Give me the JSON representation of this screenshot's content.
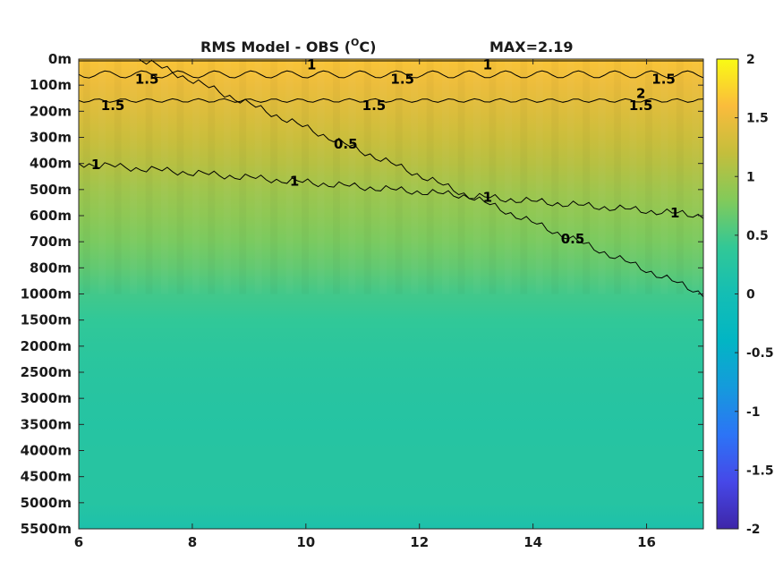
{
  "chart_data": {
    "type": "heatmap",
    "title": "RMS Model - OBS (°C)",
    "title_left": "RMS Model - OBS (",
    "title_degree": "O",
    "title_unit": "C)",
    "annotation": "MAX=2.19",
    "xlim": [
      6,
      17
    ],
    "x_ticks": [
      6,
      8,
      10,
      12,
      14,
      16
    ],
    "x_tick_labels": [
      "6",
      "8",
      "10",
      "12",
      "14",
      "16"
    ],
    "y_tick_labels": [
      "0m",
      "100m",
      "200m",
      "300m",
      "400m",
      "500m",
      "600m",
      "700m",
      "800m",
      "1000m",
      "1500m",
      "2000m",
      "2500m",
      "3000m",
      "3500m",
      "4000m",
      "4500m",
      "5000m",
      "5500m"
    ],
    "colorbar": {
      "range": [
        -2,
        2
      ],
      "ticks": [
        2,
        1.5,
        1,
        0.5,
        0,
        -0.5,
        -1,
        -1.5,
        -2
      ],
      "tick_labels": [
        "2",
        "1.5",
        "1",
        "0.5",
        "0",
        "-0.5",
        "-1",
        "-1.5",
        "-2"
      ],
      "colormap": "parula"
    },
    "depth_profile": [
      {
        "depth": "0m",
        "value": 1.65
      },
      {
        "depth": "100m",
        "value": 1.5
      },
      {
        "depth": "200m",
        "value": 1.38
      },
      {
        "depth": "300m",
        "value": 1.25
      },
      {
        "depth": "400m",
        "value": 1.12
      },
      {
        "depth": "500m",
        "value": 0.98
      },
      {
        "depth": "600m",
        "value": 0.87
      },
      {
        "depth": "700m",
        "value": 0.76
      },
      {
        "depth": "800m",
        "value": 0.64
      },
      {
        "depth": "1000m",
        "value": 0.48
      },
      {
        "depth": "1500m",
        "value": 0.38
      },
      {
        "depth": "2000m",
        "value": 0.32
      },
      {
        "depth": "2500m",
        "value": 0.28
      },
      {
        "depth": "3000m",
        "value": 0.25
      },
      {
        "depth": "3500m",
        "value": 0.23
      },
      {
        "depth": "4000m",
        "value": 0.25
      },
      {
        "depth": "4500m",
        "value": 0.25
      },
      {
        "depth": "5000m",
        "value": 0.24
      },
      {
        "depth": "5500m",
        "value": 0.12
      }
    ],
    "contours": [
      {
        "level": 1.5,
        "depth_start": "100m",
        "depth_end": "100m",
        "labels": [
          {
            "x": 7.2,
            "text": "1.5"
          },
          {
            "x": 11.7,
            "text": "1.5"
          },
          {
            "x": 16.3,
            "text": "1.5"
          }
        ]
      },
      {
        "level": 1.5,
        "depth_start": "200m",
        "depth_end": "200m",
        "labels": [
          {
            "x": 6.6,
            "text": "1.5"
          },
          {
            "x": 11.2,
            "text": "1.5"
          },
          {
            "x": 15.9,
            "text": "1.5"
          }
        ]
      },
      {
        "level": 1,
        "depth_start": "400m",
        "depth_end": "600m",
        "labels": [
          {
            "x": 6.3,
            "text": "1"
          },
          {
            "x": 9.8,
            "text": "1"
          },
          {
            "x": 13.2,
            "text": "1"
          },
          {
            "x": 16.5,
            "text": "1"
          }
        ]
      },
      {
        "level": 0.5,
        "depth_start": "900m",
        "depth_end": "1000m",
        "labels": [
          {
            "x": 6.8,
            "text": "0.5"
          },
          {
            "x": 10.7,
            "text": "0.5"
          },
          {
            "x": 14.7,
            "text": "0.5"
          }
        ]
      },
      {
        "level": 1,
        "depth_start": "0m",
        "depth_end": "0m",
        "labels": [
          {
            "x": 10.1,
            "text": "1"
          },
          {
            "x": 13.2,
            "text": "1"
          }
        ]
      },
      {
        "level": 2,
        "depth_start": "100m",
        "depth_end": "100m",
        "labels": [
          {
            "x": 15.9,
            "text": "2"
          }
        ]
      }
    ]
  }
}
